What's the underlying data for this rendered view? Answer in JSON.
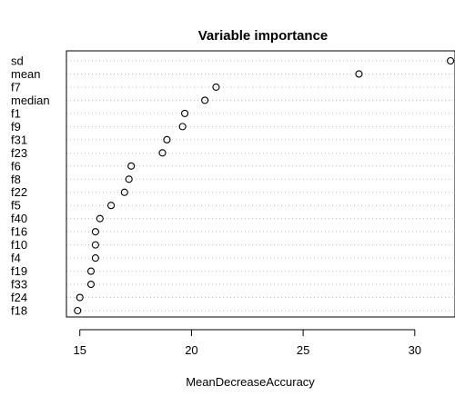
{
  "chart_data": {
    "type": "scatter",
    "title": "Variable importance",
    "xlabel": "MeanDecreaseAccuracy",
    "ylabel": "",
    "xlim": [
      14.4,
      31.8
    ],
    "xticks": [
      15,
      20,
      25,
      30
    ],
    "grid": "horizontal dotted",
    "legend": "none",
    "variables": [
      "sd",
      "mean",
      "f7",
      "median",
      "f1",
      "f9",
      "f31",
      "f23",
      "f6",
      "f8",
      "f22",
      "f5",
      "f40",
      "f16",
      "f10",
      "f4",
      "f19",
      "f33",
      "f24",
      "f18"
    ],
    "values": [
      31.6,
      27.5,
      21.1,
      20.6,
      19.7,
      19.6,
      18.9,
      18.7,
      17.3,
      17.2,
      17.0,
      16.4,
      15.9,
      15.7,
      15.7,
      15.7,
      15.5,
      15.5,
      15.0,
      14.9
    ]
  }
}
